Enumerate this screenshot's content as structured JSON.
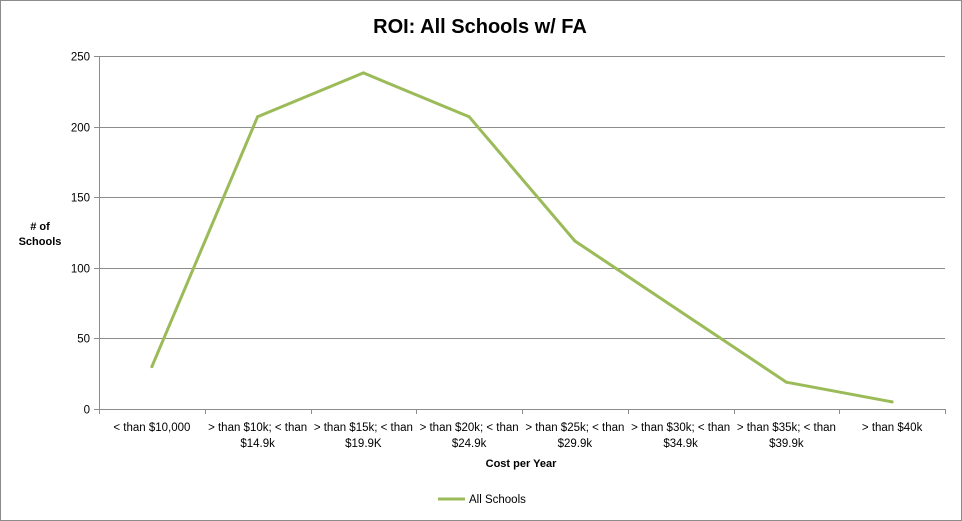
{
  "chart_data": {
    "type": "line",
    "title": "ROI: All Schools w/ FA",
    "xlabel": "Cost per Year",
    "ylabel": [
      "# of",
      "Schools"
    ],
    "ylim": [
      0,
      250
    ],
    "yticks": [
      "0",
      "50",
      "100",
      "150",
      "200",
      "250"
    ],
    "grid": true,
    "legend_position": "bottom",
    "categories": [
      [
        "< than $10,000"
      ],
      [
        "> than $10k; < than",
        "$14.9k"
      ],
      [
        "> than $15k; < than",
        "$19.9K"
      ],
      [
        "> than $20k; < than",
        "$24.9k"
      ],
      [
        "> than $25k; < than",
        "$29.9k"
      ],
      [
        "> than $30k; < than",
        "$34.9k"
      ],
      [
        "> than $35k; < than",
        "$39.9k"
      ],
      [
        "> than $40k"
      ]
    ],
    "series": [
      {
        "name": "All Schools",
        "color": "#9bbb59",
        "values": [
          30,
          207,
          238,
          207,
          119,
          69,
          19,
          5
        ]
      }
    ]
  }
}
